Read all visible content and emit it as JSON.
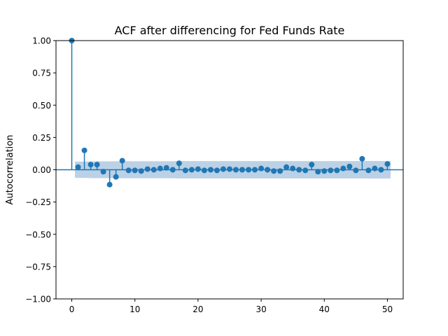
{
  "chart_data": {
    "type": "stem",
    "title": "ACF after differencing for Fed Funds Rate",
    "xlabel": "",
    "ylabel": "Autocorrelation",
    "xlim": [
      -2.5,
      52.5
    ],
    "ylim": [
      -1.0,
      1.0
    ],
    "x_ticks": [
      0,
      10,
      20,
      30,
      40,
      50
    ],
    "x_tick_labels": [
      "0",
      "10",
      "20",
      "30",
      "40",
      "50"
    ],
    "y_ticks": [
      -1.0,
      -0.75,
      -0.5,
      -0.25,
      0.0,
      0.25,
      0.5,
      0.75,
      1.0
    ],
    "y_tick_labels": [
      "−1.00",
      "−0.75",
      "−0.50",
      "−0.25",
      "0.00",
      "0.25",
      "0.50",
      "0.75",
      "1.00"
    ],
    "grid": false,
    "lags": [
      0,
      1,
      2,
      3,
      4,
      5,
      6,
      7,
      8,
      9,
      10,
      11,
      12,
      13,
      14,
      15,
      16,
      17,
      18,
      19,
      20,
      21,
      22,
      23,
      24,
      25,
      26,
      27,
      28,
      29,
      30,
      31,
      32,
      33,
      34,
      35,
      36,
      37,
      38,
      39,
      40,
      41,
      42,
      43,
      44,
      45,
      46,
      47,
      48,
      49,
      50
    ],
    "acf": [
      1.0,
      0.02,
      0.15,
      0.04,
      0.04,
      -0.015,
      -0.115,
      -0.055,
      0.07,
      -0.005,
      -0.005,
      -0.01,
      0.005,
      0.0,
      0.01,
      0.015,
      0.0,
      0.05,
      -0.005,
      0.0,
      0.005,
      -0.005,
      0.0,
      -0.005,
      0.005,
      0.005,
      0.0,
      0.0,
      0.0,
      0.0,
      0.01,
      0.0,
      -0.01,
      -0.01,
      0.02,
      0.01,
      0.0,
      -0.005,
      0.04,
      -0.015,
      -0.01,
      -0.005,
      -0.005,
      0.01,
      0.025,
      -0.005,
      0.085,
      -0.005,
      0.01,
      0.0,
      0.045
    ],
    "confint_upper": [
      0.0,
      0.063,
      0.063,
      0.065,
      0.065,
      0.065,
      0.065,
      0.066,
      0.066,
      0.066,
      0.066,
      0.066,
      0.066,
      0.066,
      0.066,
      0.066,
      0.066,
      0.067,
      0.067,
      0.067,
      0.067,
      0.067,
      0.067,
      0.067,
      0.067,
      0.067,
      0.067,
      0.067,
      0.067,
      0.067,
      0.067,
      0.067,
      0.067,
      0.067,
      0.067,
      0.067,
      0.067,
      0.067,
      0.067,
      0.067,
      0.067,
      0.067,
      0.067,
      0.067,
      0.067,
      0.067,
      0.067,
      0.068,
      0.068,
      0.068,
      0.068
    ],
    "colors": {
      "stem": "#1f77b4",
      "confidence_band": "#b0c9e0",
      "axes": "#000000"
    }
  }
}
